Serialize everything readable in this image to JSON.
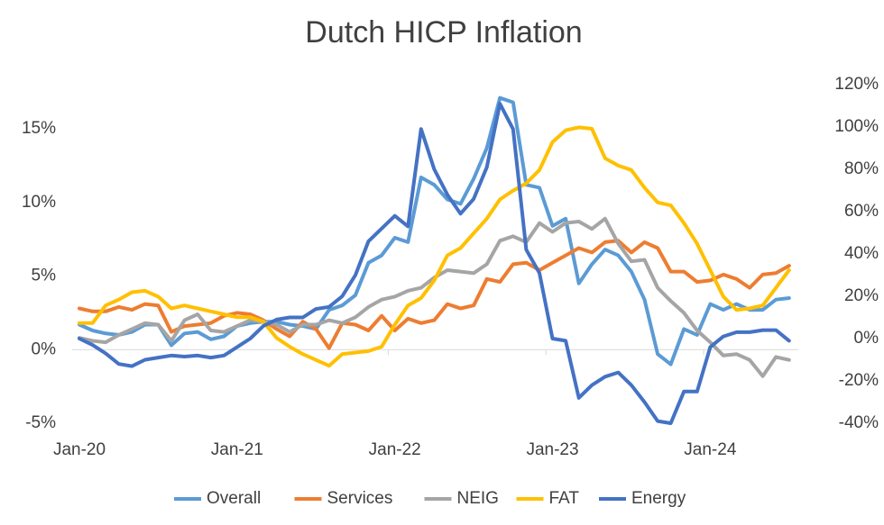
{
  "chart_data": {
    "type": "line",
    "title": "Dutch HICP Inflation",
    "categories": [
      "Jan-20",
      null,
      null,
      null,
      null,
      null,
      null,
      null,
      null,
      null,
      null,
      null,
      "Jan-21",
      null,
      null,
      null,
      null,
      null,
      null,
      null,
      null,
      null,
      null,
      null,
      "Jan-22",
      null,
      null,
      null,
      null,
      null,
      null,
      null,
      null,
      null,
      null,
      null,
      "Jan-23",
      null,
      null,
      null,
      null,
      null,
      null,
      null,
      null,
      null,
      null,
      null,
      "Jan-24",
      null,
      null,
      null,
      null,
      null,
      null
    ],
    "ylim": [
      -5,
      18
    ],
    "yticks": [
      {
        "value": -5,
        "label": "-5%"
      },
      {
        "value": 0,
        "label": "0%"
      },
      {
        "value": 5,
        "label": "5%"
      },
      {
        "value": 10,
        "label": "10%"
      },
      {
        "value": 15,
        "label": "15%"
      }
    ],
    "y2lim": [
      -40,
      120
    ],
    "y2ticks": [
      {
        "value": -40,
        "label": "-40%"
      },
      {
        "value": -20,
        "label": "-20%"
      },
      {
        "value": 0,
        "label": "0%"
      },
      {
        "value": 20,
        "label": "20%"
      },
      {
        "value": 40,
        "label": "40%"
      },
      {
        "value": 60,
        "label": "60%"
      },
      {
        "value": 80,
        "label": "80%"
      },
      {
        "value": 100,
        "label": "100%"
      },
      {
        "value": 120,
        "label": "120%"
      }
    ],
    "legend": "bottom",
    "series": [
      {
        "name": "Overall",
        "color": "#5b9bd5",
        "values": [
          1.7,
          1.3,
          1.1,
          1.0,
          1.2,
          1.7,
          1.7,
          0.3,
          1.1,
          1.2,
          0.7,
          0.9,
          1.6,
          1.8,
          1.9,
          1.9,
          1.7,
          1.6,
          1.4,
          2.7,
          3.0,
          3.7,
          5.9,
          6.4,
          7.6,
          7.3,
          11.7,
          11.2,
          10.2,
          9.9,
          11.6,
          13.7,
          17.1,
          16.8,
          11.2,
          11.0,
          8.4,
          8.9,
          4.5,
          5.8,
          6.8,
          6.4,
          5.3,
          3.4,
          -0.3,
          -1.0,
          1.4,
          1.0,
          3.1,
          2.7,
          3.1,
          2.7,
          2.7,
          3.4,
          3.5
        ]
      },
      {
        "name": "Services",
        "color": "#ed7d31",
        "values": [
          2.8,
          2.6,
          2.6,
          2.9,
          2.7,
          3.1,
          3.0,
          1.2,
          1.6,
          1.7,
          1.8,
          2.3,
          2.5,
          2.4,
          2.0,
          1.4,
          0.9,
          1.9,
          1.4,
          0.1,
          1.8,
          1.7,
          1.3,
          2.3,
          1.3,
          2.1,
          1.8,
          2.0,
          3.1,
          2.8,
          3.0,
          4.8,
          4.6,
          5.8,
          5.9,
          5.4,
          5.9,
          6.4,
          6.9,
          6.6,
          7.3,
          7.4,
          6.6,
          7.3,
          6.9,
          5.3,
          5.3,
          4.6,
          4.7,
          5.1,
          4.8,
          4.2,
          5.1,
          5.2,
          5.7
        ]
      },
      {
        "name": "NEIG",
        "color": "#a5a5a5",
        "values": [
          0.8,
          0.6,
          0.5,
          1.0,
          1.4,
          1.8,
          1.7,
          0.6,
          2.0,
          2.4,
          1.3,
          1.2,
          1.6,
          2.0,
          1.9,
          1.7,
          1.2,
          1.7,
          1.7,
          2.0,
          1.8,
          2.2,
          2.9,
          3.4,
          3.6,
          4.0,
          4.2,
          4.9,
          5.4,
          5.3,
          5.2,
          5.8,
          7.4,
          7.7,
          7.3,
          8.6,
          8.0,
          8.6,
          8.7,
          8.2,
          8.9,
          7.2,
          6.0,
          6.1,
          4.2,
          3.3,
          2.5,
          1.3,
          0.5,
          -0.4,
          -0.3,
          -0.7,
          -1.8,
          -0.5,
          -0.7
        ]
      },
      {
        "name": "FAT",
        "color": "#ffc000",
        "values": [
          1.8,
          1.8,
          3.0,
          3.4,
          3.9,
          4.0,
          3.6,
          2.8,
          3.0,
          2.8,
          2.6,
          2.4,
          2.2,
          2.2,
          1.9,
          0.8,
          0.2,
          -0.3,
          -0.7,
          -1.1,
          -0.3,
          -0.2,
          -0.1,
          0.2,
          1.7,
          3.0,
          3.5,
          4.7,
          6.4,
          6.9,
          7.9,
          8.9,
          10.2,
          10.8,
          11.3,
          12.2,
          14.1,
          14.9,
          15.1,
          15.0,
          13.0,
          12.5,
          12.2,
          11.0,
          10.0,
          9.8,
          8.6,
          7.2,
          5.4,
          3.6,
          2.7,
          2.8,
          3.0,
          4.2,
          5.4
        ]
      },
      {
        "name": "Energy",
        "color": "#4472c4",
        "axis": "y2",
        "values": [
          0,
          -3,
          -7,
          -12,
          -13,
          -10,
          -9,
          -8,
          -8.5,
          -8,
          -9,
          -8,
          -4,
          0,
          6,
          9,
          10,
          10,
          14,
          15,
          20,
          30,
          46,
          52,
          58,
          53,
          99,
          80,
          68,
          59,
          66,
          81,
          111,
          99,
          42,
          31,
          0,
          -1,
          -28,
          -22,
          -18,
          -16,
          -22,
          -30,
          -39,
          -40,
          -25,
          -25,
          -4,
          1,
          3,
          3,
          4,
          4,
          -1
        ]
      }
    ]
  }
}
